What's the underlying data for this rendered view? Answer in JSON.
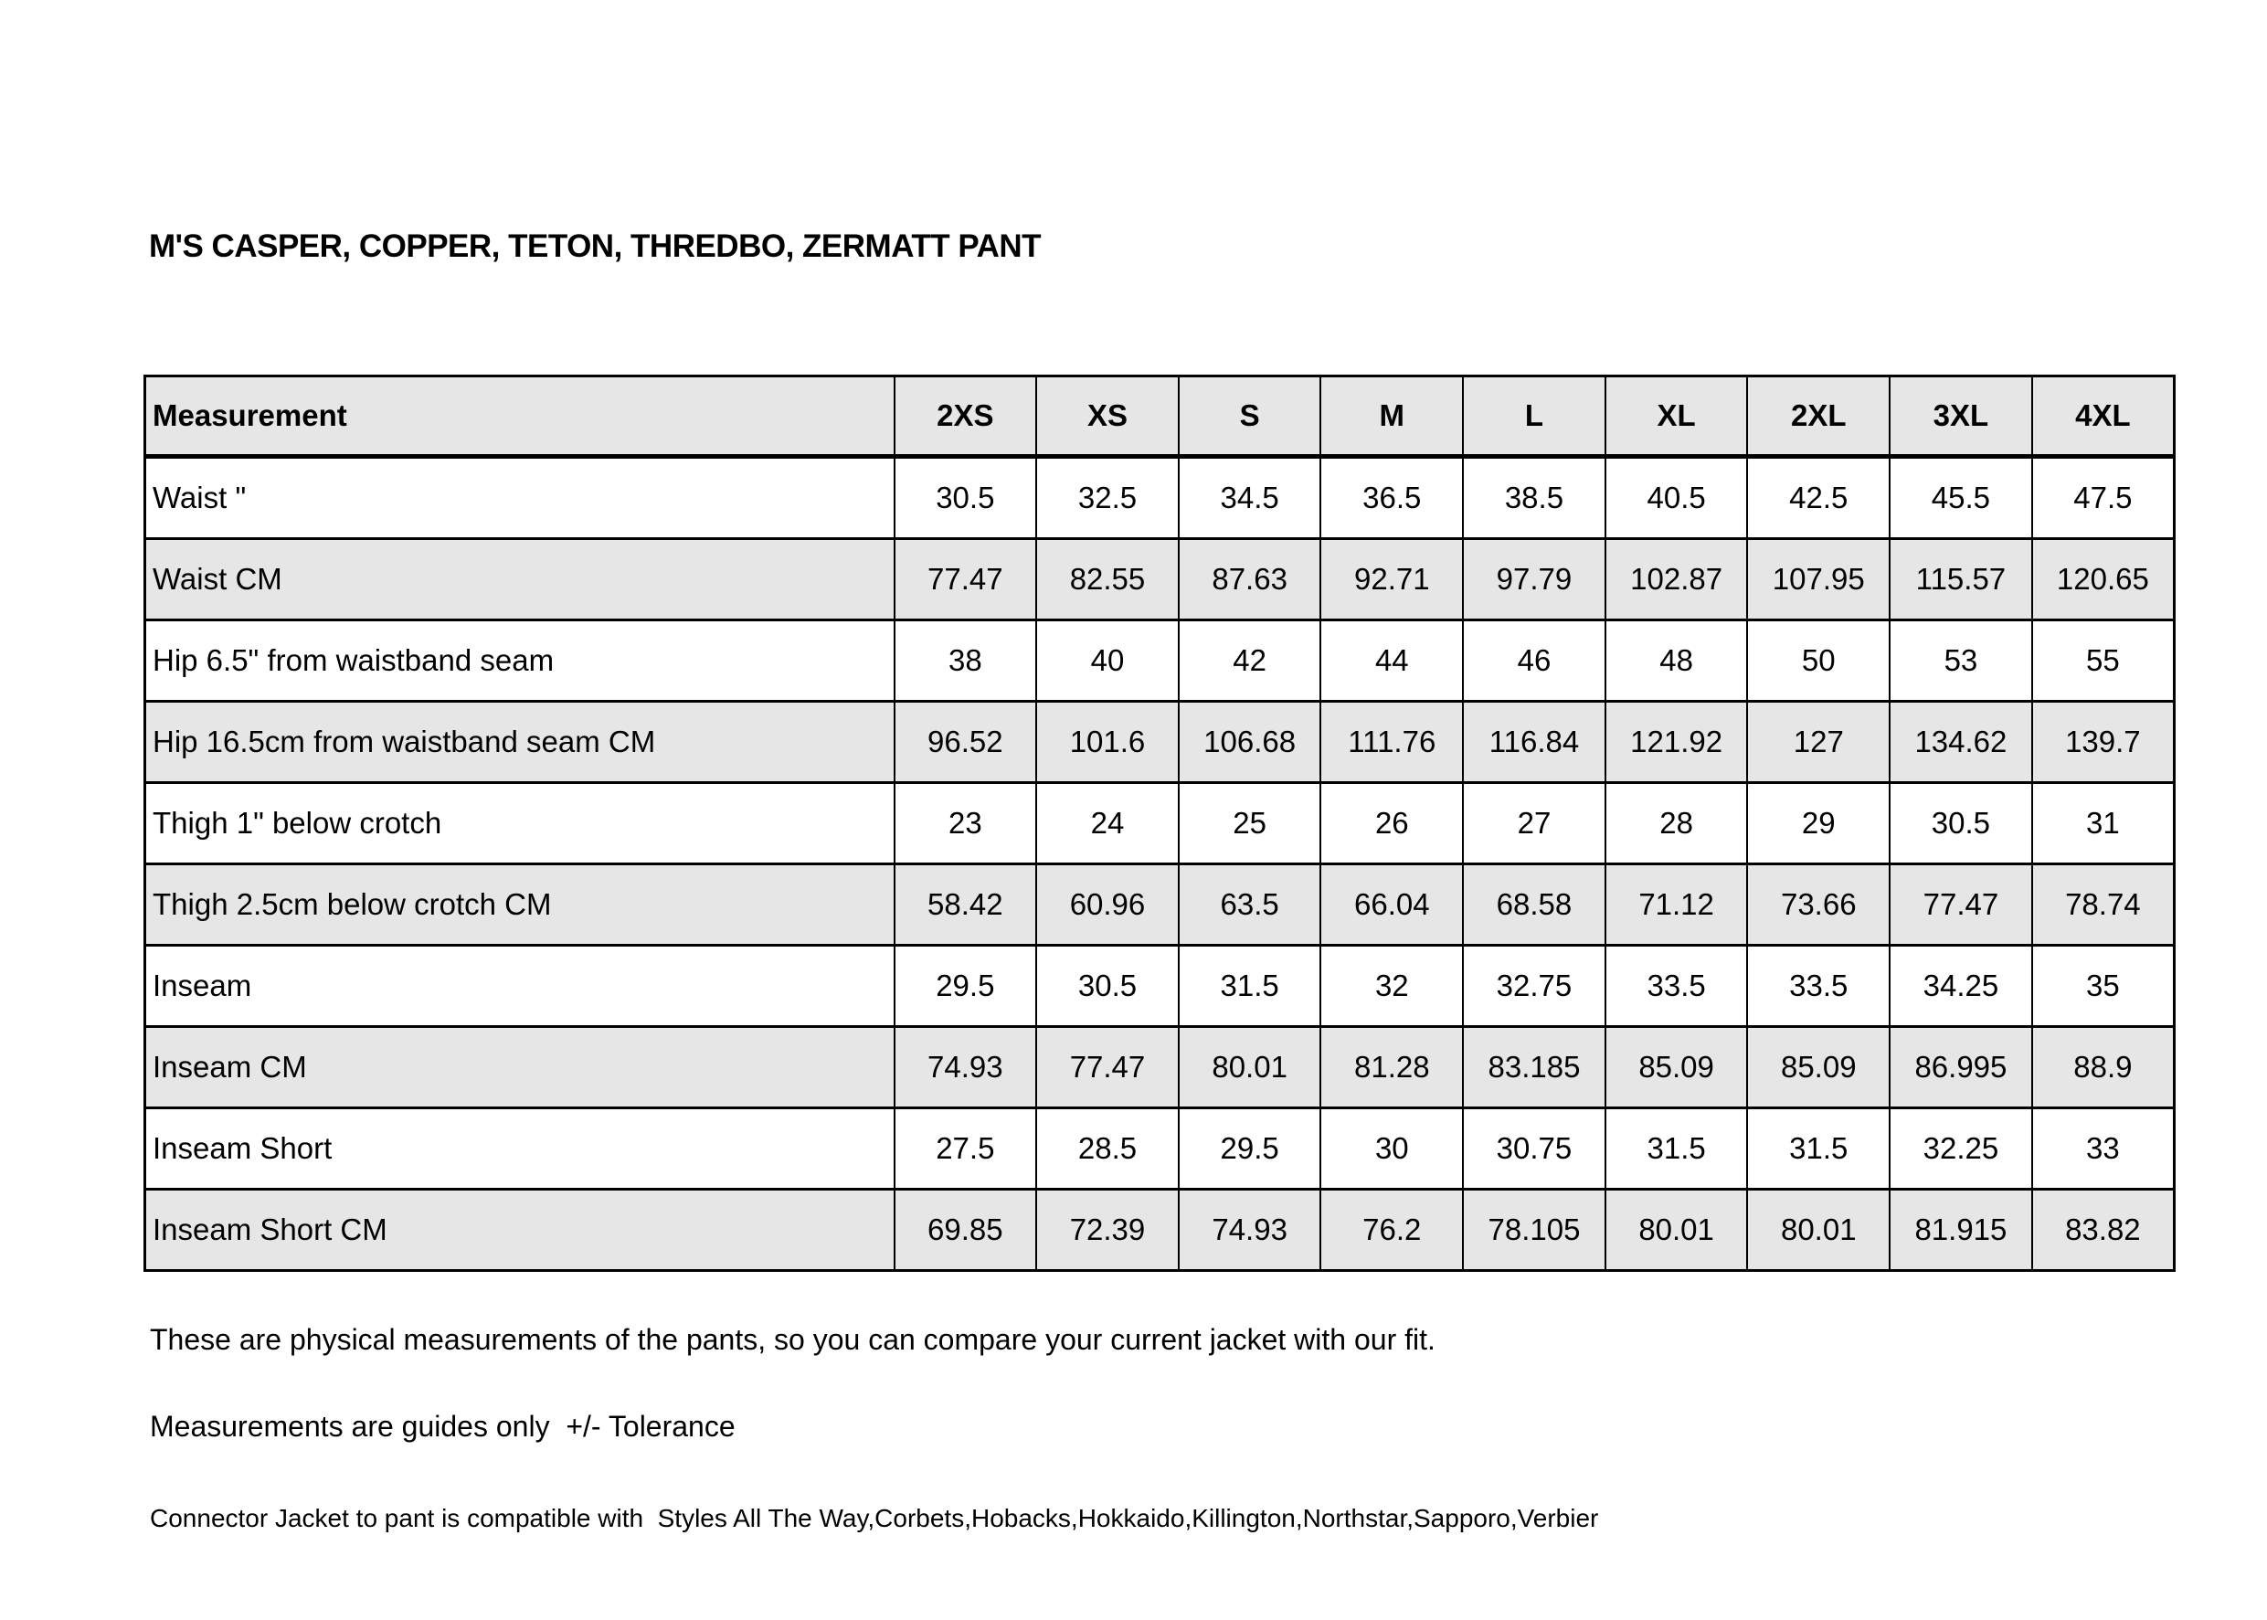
{
  "page": {
    "title": "M'S CASPER, COPPER, TETON, THREDBO, ZERMATT PANT"
  },
  "table": {
    "header": [
      "Measurement",
      "2XS",
      "XS",
      "S",
      "M",
      "L",
      "XL",
      "2XL",
      "3XL",
      "4XL"
    ],
    "rows": [
      {
        "label": "Waist \"",
        "values": [
          "30.5",
          "32.5",
          "34.5",
          "36.5",
          "38.5",
          "40.5",
          "42.5",
          "45.5",
          "47.5"
        ]
      },
      {
        "label": "Waist CM",
        "values": [
          "77.47",
          "82.55",
          "87.63",
          "92.71",
          "97.79",
          "102.87",
          "107.95",
          "115.57",
          "120.65"
        ]
      },
      {
        "label": "Hip 6.5\" from waistband seam",
        "values": [
          "38",
          "40",
          "42",
          "44",
          "46",
          "48",
          "50",
          "53",
          "55"
        ]
      },
      {
        "label": "Hip 16.5cm from waistband seam CM",
        "values": [
          "96.52",
          "101.6",
          "106.68",
          "111.76",
          "116.84",
          "121.92",
          "127",
          "134.62",
          "139.7"
        ]
      },
      {
        "label": "Thigh 1\" below crotch",
        "values": [
          "23",
          "24",
          "25",
          "26",
          "27",
          "28",
          "29",
          "30.5",
          "31"
        ]
      },
      {
        "label": "Thigh 2.5cm below crotch CM",
        "values": [
          "58.42",
          "60.96",
          "63.5",
          "66.04",
          "68.58",
          "71.12",
          "73.66",
          "77.47",
          "78.74"
        ]
      },
      {
        "label": "Inseam",
        "values": [
          "29.5",
          "30.5",
          "31.5",
          "32",
          "32.75",
          "33.5",
          "33.5",
          "34.25",
          "35"
        ]
      },
      {
        "label": "Inseam CM",
        "values": [
          "74.93",
          "77.47",
          "80.01",
          "81.28",
          "83.185",
          "85.09",
          "85.09",
          "86.995",
          "88.9"
        ]
      },
      {
        "label": "Inseam Short",
        "values": [
          "27.5",
          "28.5",
          "29.5",
          "30",
          "30.75",
          "31.5",
          "31.5",
          "32.25",
          "33"
        ]
      },
      {
        "label": "Inseam Short CM",
        "values": [
          "69.85",
          "72.39",
          "74.93",
          "76.2",
          "78.105",
          "80.01",
          "80.01",
          "81.915",
          "83.82"
        ]
      }
    ]
  },
  "notes": {
    "line1": "These are physical measurements of the pants, so you can compare your current jacket with our fit.",
    "line2": "Measurements are guides only  +/- Tolerance",
    "line3": "Connector Jacket to pant is compatible with  Styles All The Way,Corbets,Hobacks,Hokkaido,Killington,Northstar,Sapporo,Verbier"
  },
  "colors": {
    "background": "#ffffff",
    "shaded_row": "#e6e6e6",
    "border": "#000000",
    "text": "#000000"
  }
}
